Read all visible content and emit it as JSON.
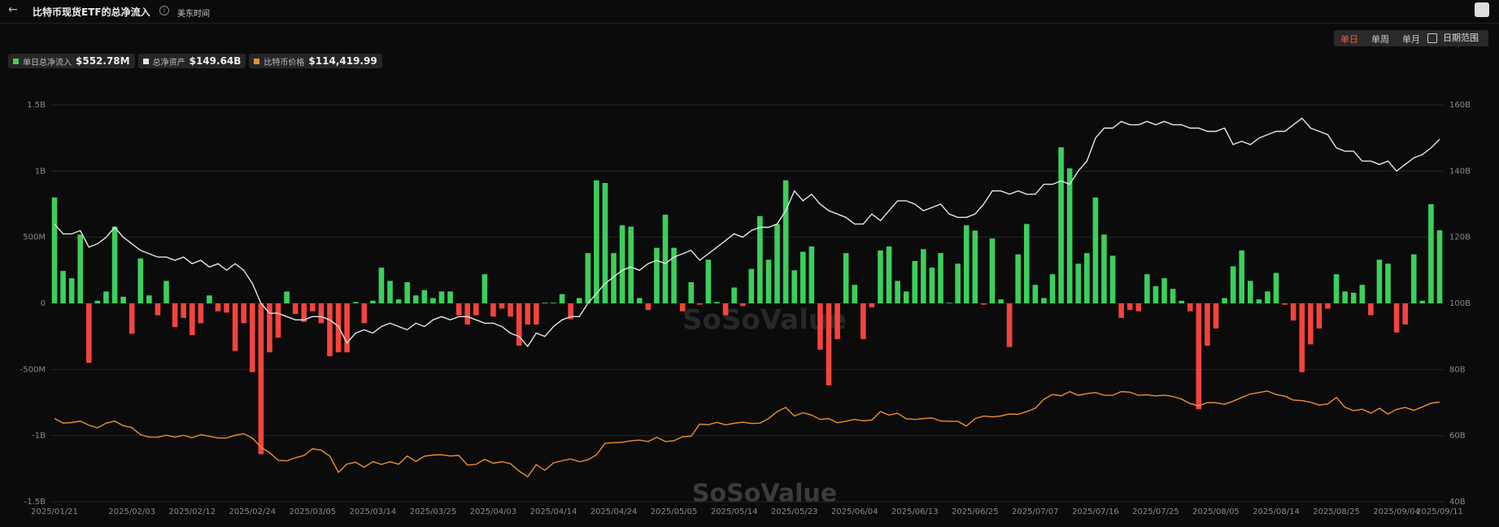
{
  "header": {
    "title": "比特币现货ETF的总净流入",
    "timezone": "美东时间",
    "periods": [
      "单日",
      "单周",
      "单月"
    ],
    "active_period": 0,
    "date_range": "日期范围"
  },
  "chart_data": {
    "type": "bar",
    "watermark": "SoSoValue",
    "categories": [
      "2025/01/21",
      null,
      null,
      null,
      null,
      null,
      null,
      null,
      null,
      "2025/02/03",
      null,
      null,
      null,
      null,
      null,
      null,
      "2025/02/12",
      null,
      null,
      null,
      null,
      null,
      null,
      "2025/02/24",
      null,
      null,
      null,
      null,
      null,
      null,
      "2025/03/05",
      null,
      null,
      null,
      null,
      null,
      null,
      "2025/03/14",
      null,
      null,
      null,
      null,
      null,
      null,
      "2025/03/25",
      null,
      null,
      null,
      null,
      null,
      null,
      "2025/04/03",
      null,
      null,
      null,
      null,
      null,
      null,
      "2025/04/14",
      null,
      null,
      null,
      null,
      null,
      null,
      "2025/04/24",
      null,
      null,
      null,
      null,
      null,
      null,
      "2025/05/05",
      null,
      null,
      null,
      null,
      null,
      null,
      "2025/05/14",
      null,
      null,
      null,
      null,
      null,
      null,
      "2025/05/23",
      null,
      null,
      null,
      null,
      null,
      null,
      "2025/06/04",
      null,
      null,
      null,
      null,
      null,
      null,
      "2025/06/13",
      null,
      null,
      null,
      null,
      null,
      null,
      "2025/06/25",
      null,
      null,
      null,
      null,
      null,
      null,
      "2025/07/07",
      null,
      null,
      null,
      null,
      null,
      null,
      "2025/07/16",
      null,
      null,
      null,
      null,
      null,
      null,
      "2025/07/25",
      null,
      null,
      null,
      null,
      null,
      null,
      "2025/08/05",
      null,
      null,
      null,
      null,
      null,
      null,
      "2025/08/14",
      null,
      null,
      null,
      null,
      null,
      null,
      "2025/08/25",
      null,
      null,
      null,
      null,
      null,
      null,
      "2025/09/04",
      null,
      null,
      null,
      null,
      "2025/09/11"
    ],
    "series": [
      {
        "name": "单日总净流入",
        "type": "bar",
        "positive_color": "#3ccf5c",
        "negative_color": "#f4443e",
        "legend_color": "#3ccf5c",
        "current": "$552.78M",
        "values": [
          800,
          245,
          190,
          520,
          -450,
          20,
          90,
          580,
          50,
          -230,
          340,
          60,
          -90,
          170,
          -180,
          -110,
          -240,
          -150,
          60,
          -60,
          -70,
          -360,
          -150,
          -520,
          -1140,
          -370,
          -260,
          90,
          -80,
          -140,
          -60,
          -150,
          -400,
          -370,
          -370,
          10,
          -150,
          20,
          270,
          170,
          30,
          160,
          60,
          100,
          40,
          90,
          90,
          -90,
          -160,
          -90,
          220,
          -100,
          -40,
          -100,
          -320,
          -160,
          -160,
          5,
          5,
          70,
          -120,
          40,
          380,
          930,
          910,
          380,
          590,
          580,
          40,
          -50,
          420,
          670,
          420,
          -60,
          160,
          -10,
          330,
          10,
          -90,
          120,
          -20,
          260,
          660,
          330,
          600,
          930,
          250,
          390,
          430,
          -350,
          -620,
          -270,
          380,
          140,
          -270,
          -30,
          400,
          430,
          170,
          90,
          320,
          410,
          270,
          380,
          5,
          300,
          590,
          550,
          -10,
          490,
          30,
          -330,
          370,
          600,
          140,
          40,
          220,
          1180,
          1020,
          300,
          380,
          800,
          520,
          360,
          -110,
          -50,
          -60,
          220,
          130,
          190,
          110,
          20,
          -60,
          -800,
          -320,
          -190,
          40,
          280,
          400,
          170,
          30,
          90,
          230,
          -10,
          -130,
          -520,
          -310,
          -190,
          -40,
          220,
          90,
          80,
          140,
          -90,
          330,
          300,
          -220,
          -160,
          370,
          20,
          750,
          552.78
        ]
      },
      {
        "name": "总净资产",
        "type": "line",
        "axis": "y2",
        "color": "#e6e6e6",
        "current": "$149.64B",
        "values": [
          124,
          121,
          121,
          122,
          117,
          118,
          120,
          123,
          120,
          118,
          116,
          115,
          114,
          114,
          113,
          114,
          112,
          113,
          111,
          112,
          110,
          112,
          110,
          106,
          100,
          97,
          97,
          96,
          95,
          95,
          96,
          96,
          95,
          93,
          88,
          91,
          92,
          91,
          93,
          94,
          93,
          92,
          94,
          93,
          95,
          96,
          95,
          96,
          96,
          95,
          94,
          94,
          93,
          91,
          90,
          87,
          91,
          90,
          93,
          95,
          96,
          96,
          100,
          103,
          106,
          108,
          110,
          111,
          110,
          112,
          113,
          112,
          114,
          115,
          116,
          113,
          115,
          117,
          119,
          121,
          120,
          122,
          123,
          123,
          124,
          128,
          134,
          131,
          133,
          130,
          128,
          127,
          126,
          124,
          124,
          127,
          125,
          128,
          131,
          131,
          130,
          128,
          129,
          130,
          127,
          126,
          126,
          127,
          130,
          134,
          134,
          133,
          134,
          133,
          133,
          136,
          136,
          137,
          136,
          140,
          143,
          150,
          153,
          153,
          155,
          154,
          154,
          155,
          154,
          155,
          154,
          154,
          153,
          153,
          152,
          152,
          153,
          148,
          149,
          148,
          150,
          151,
          152,
          152,
          154,
          156,
          153,
          152,
          151,
          147,
          146,
          146,
          143,
          143,
          142,
          143,
          140,
          142,
          144,
          145,
          147,
          149.64
        ]
      },
      {
        "name": "比特币价格",
        "type": "line",
        "axis": "y3",
        "color": "#ec8f2e",
        "current": "$114,419.99",
        "values": [
          106100,
          103700,
          104000,
          104700,
          102600,
          101300,
          103700,
          104700,
          102400,
          101400,
          97800,
          96600,
          96500,
          97500,
          96600,
          97500,
          96200,
          97800,
          97000,
          96100,
          96100,
          97500,
          98300,
          96100,
          91400,
          88600,
          84700,
          84400,
          86000,
          87200,
          90600,
          89900,
          86800,
          78600,
          82800,
          83700,
          81100,
          84000,
          82600,
          84000,
          82700,
          86900,
          84100,
          86800,
          87400,
          87500,
          86900,
          87200,
          82300,
          82600,
          85200,
          83200,
          84000,
          83000,
          79200,
          76300,
          82500,
          79600,
          83400,
          84500,
          85400,
          84000,
          84900,
          87500,
          93400,
          93700,
          93900,
          94700,
          95000,
          94300,
          96500,
          94300,
          94700,
          96800,
          97000,
          103200,
          102900,
          104100,
          102800,
          103600,
          104200,
          103500,
          103700,
          106000,
          109600,
          111700,
          107300,
          109000,
          107800,
          105600,
          106000,
          103900,
          104700,
          105600,
          104900,
          105300,
          109600,
          107800,
          108700,
          105900,
          105600,
          106000,
          106400,
          104800,
          104600,
          104600,
          102200,
          106000,
          107300,
          106900,
          107300,
          108400,
          108200,
          109600,
          111300,
          115900,
          118300,
          117700,
          119800,
          117900,
          118800,
          119300,
          118000,
          117900,
          119800,
          119500,
          117900,
          118200,
          117600,
          118000,
          117300,
          116000,
          113700,
          112500,
          114200,
          114100,
          113300,
          114900,
          116800,
          118600,
          119300,
          120100,
          118300,
          117500,
          115500,
          115200,
          114400,
          112900,
          113500,
          116800,
          111800,
          110100,
          110800,
          108800,
          111300,
          108300,
          110700,
          111700,
          110200,
          112000,
          113900,
          114419.99
        ]
      }
    ],
    "ylim": [
      -1500,
      1500
    ],
    "yticks": [
      {
        "value": -1500,
        "label": "-1.5B"
      },
      {
        "value": -1000,
        "label": "-1B"
      },
      {
        "value": -500,
        "label": "-500M"
      },
      0,
      {
        "value": 500,
        "label": "500M"
      },
      {
        "value": 1000,
        "label": "1B"
      },
      {
        "value": 1500,
        "label": "1.5B"
      }
    ],
    "y2lim": [
      40,
      160
    ],
    "y2ticks": [
      {
        "value": 40,
        "label": "40B"
      },
      {
        "value": 60,
        "label": "60B"
      },
      {
        "value": 80,
        "label": "80B"
      },
      {
        "value": 100,
        "label": "100B"
      },
      {
        "value": 120,
        "label": "120B"
      },
      {
        "value": 140,
        "label": "140B"
      },
      {
        "value": 160,
        "label": "160B"
      }
    ],
    "y3lim": [
      63500,
      266300
    ],
    "grid": true
  }
}
